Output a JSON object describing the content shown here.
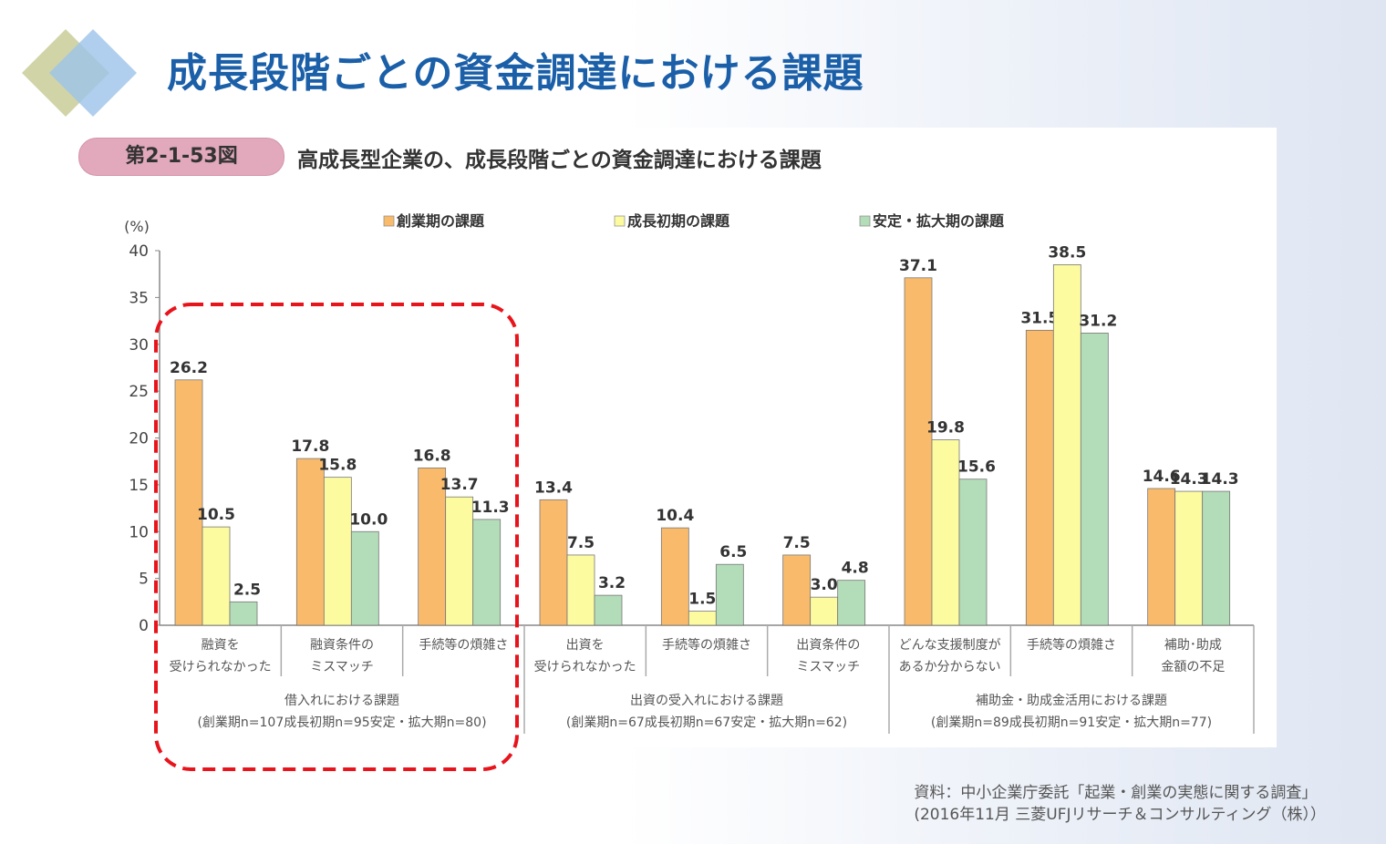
{
  "header": {
    "title": "成長段階ごとの資金調達における課題"
  },
  "figure": {
    "number": "第2-1-53図",
    "title": "高成長型企業の、成長段階ごとの資金調達における課題"
  },
  "colors": {
    "title": "#1a5fa8",
    "highlight_box": "#e8141c"
  },
  "chart_data": {
    "type": "bar",
    "ylabel": "(%)",
    "ylim": [
      0,
      40
    ],
    "yticks": [
      0,
      5,
      10,
      15,
      20,
      25,
      30,
      35,
      40
    ],
    "grid": false,
    "legend_position": "top",
    "series": [
      {
        "name": "創業期の課題",
        "color": "#f9bb6b",
        "values": [
          26.2,
          17.8,
          16.8,
          13.4,
          10.4,
          7.5,
          37.1,
          31.5,
          14.6
        ]
      },
      {
        "name": "成長初期の課題",
        "color": "#fdfba0",
        "values": [
          10.5,
          15.8,
          13.7,
          7.5,
          1.5,
          3.0,
          19.8,
          38.5,
          14.3
        ]
      },
      {
        "name": "安定・拡大期の課題",
        "color": "#b3dcb8",
        "values": [
          2.5,
          10.0,
          11.3,
          3.2,
          6.5,
          4.8,
          15.6,
          31.2,
          14.3
        ]
      }
    ],
    "categories": [
      [
        "融資を",
        "受けられなかった"
      ],
      [
        "融資条件の",
        "ミスマッチ"
      ],
      [
        "手続等の煩雑さ"
      ],
      [
        "出資を",
        "受けられなかった"
      ],
      [
        "手続等の煩雑さ"
      ],
      [
        "出資条件の",
        "ミスマッチ"
      ],
      [
        "どんな支援制度が",
        "あるか分からない"
      ],
      [
        "手続等の煩雑さ"
      ],
      [
        "補助･助成",
        "金額の不足"
      ]
    ],
    "groups": [
      {
        "label": "借入れにおける課題",
        "sample": "(創業期n=107成長初期n=95安定・拡大期n=80)",
        "highlighted": true
      },
      {
        "label": "出資の受入れにおける課題",
        "sample": "(創業期n=67成長初期n=67安定・拡大期n=62)",
        "highlighted": false
      },
      {
        "label": "補助金・助成金活用における課題",
        "sample": "(創業期n=89成長初期n=91安定・拡大期n=77)",
        "highlighted": false
      }
    ]
  },
  "source": {
    "line1": "資料：中小企業庁委託「起業・創業の実態に関する調査」",
    "line2": "(2016年11月 三菱UFJリサーチ＆コンサルティング（株））"
  }
}
